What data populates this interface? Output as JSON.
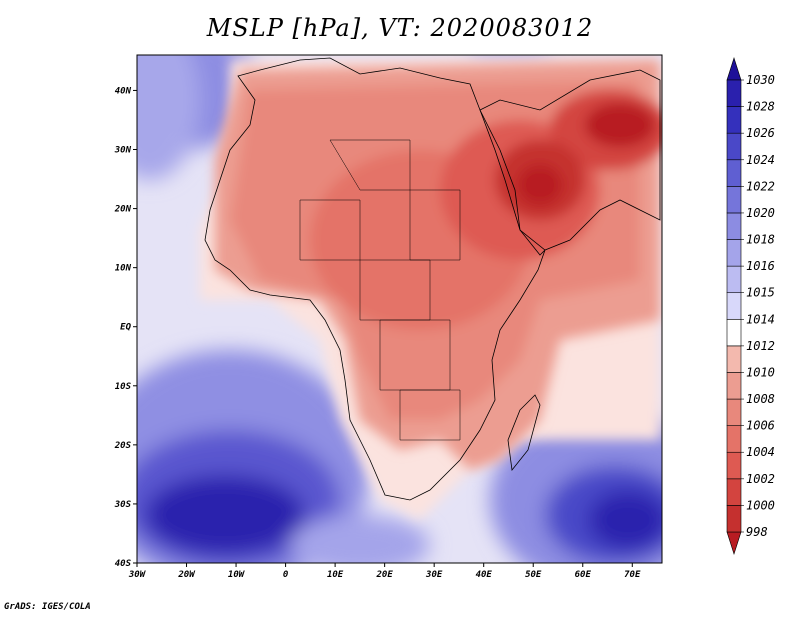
{
  "title": "MSLP [hPa], VT: 2020083012",
  "credit": "GrADS: IGES/COLA",
  "map": {
    "lon_range": [
      -30,
      76
    ],
    "lat_range": [
      -40,
      46
    ],
    "x_ticks": [
      "30W",
      "20W",
      "10W",
      "0",
      "10E",
      "20E",
      "30E",
      "40E",
      "50E",
      "60E",
      "70E"
    ],
    "y_ticks": [
      "40S",
      "30S",
      "20S",
      "10S",
      "EQ",
      "10N",
      "20N",
      "30N",
      "40N"
    ]
  },
  "colorbar": {
    "levels": [
      "998",
      "1000",
      "1002",
      "1004",
      "1006",
      "1008",
      "1010",
      "1012",
      "1014",
      "1015",
      "1016",
      "1018",
      "1020",
      "1022",
      "1024",
      "1026",
      "1028",
      "1030"
    ],
    "colors": [
      "#b81c22",
      "#c5302f",
      "#d3443f",
      "#de5a52",
      "#e47368",
      "#e8887c",
      "#ec9d91",
      "#f3b9ae",
      "#ffffff",
      "#d8d8fa",
      "#bcbcf2",
      "#a4a4ea",
      "#8c8ce2",
      "#7575da",
      "#5f5fd2",
      "#4a48c8",
      "#3430bc",
      "#2a20ad",
      "#1e1099"
    ]
  }
}
